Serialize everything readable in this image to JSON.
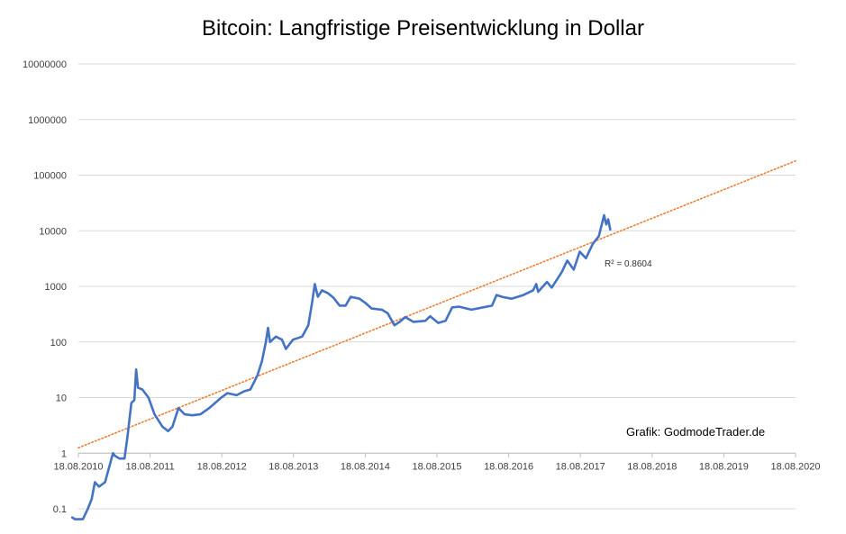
{
  "chart_data": {
    "type": "line",
    "title": "Bitcoin: Langfristige Preisentwicklung in Dollar",
    "xlabel": "",
    "ylabel": "",
    "y_scale": "log",
    "ylim": [
      0.1,
      10000000
    ],
    "y_ticks": [
      "0.1",
      "1",
      "10",
      "100",
      "1000",
      "10000",
      "100000",
      "1000000",
      "10000000"
    ],
    "x_ticks": [
      "18.08.2010",
      "18.08.2011",
      "18.08.2012",
      "18.08.2013",
      "18.08.2014",
      "18.08.2015",
      "18.08.2016",
      "18.08.2017",
      "18.08.2018",
      "18.08.2019",
      "18.08.2020"
    ],
    "xlim": [
      "2010-08-18",
      "2020-08-18"
    ],
    "grid": "horizontal",
    "series": [
      {
        "name": "",
        "color": "#4472c4",
        "points": [
          [
            "2010-07-18",
            0.07
          ],
          [
            "2010-08-01",
            0.065
          ],
          [
            "2010-09-10",
            0.065
          ],
          [
            "2010-10-05",
            0.1
          ],
          [
            "2010-10-25",
            0.15
          ],
          [
            "2010-11-10",
            0.3
          ],
          [
            "2010-12-01",
            0.25
          ],
          [
            "2011-01-01",
            0.3
          ],
          [
            "2011-02-10",
            1.0
          ],
          [
            "2011-02-20",
            0.9
          ],
          [
            "2011-03-15",
            0.8
          ],
          [
            "2011-04-10",
            0.8
          ],
          [
            "2011-04-25",
            2.0
          ],
          [
            "2011-05-15",
            8.0
          ],
          [
            "2011-05-30",
            9.0
          ],
          [
            "2011-06-08",
            32.0
          ],
          [
            "2011-06-18",
            15.0
          ],
          [
            "2011-07-10",
            14.0
          ],
          [
            "2011-08-10",
            10.0
          ],
          [
            "2011-09-10",
            5.0
          ],
          [
            "2011-10-20",
            3.0
          ],
          [
            "2011-11-18",
            2.5
          ],
          [
            "2011-12-10",
            3.0
          ],
          [
            "2012-01-10",
            6.5
          ],
          [
            "2012-02-10",
            5.0
          ],
          [
            "2012-03-20",
            4.8
          ],
          [
            "2012-05-01",
            5.0
          ],
          [
            "2012-06-15",
            6.5
          ],
          [
            "2012-08-15",
            10.0
          ],
          [
            "2012-09-15",
            12.0
          ],
          [
            "2012-11-01",
            11.0
          ],
          [
            "2012-12-10",
            13.0
          ],
          [
            "2013-01-10",
            14.0
          ],
          [
            "2013-02-15",
            25.0
          ],
          [
            "2013-03-10",
            45.0
          ],
          [
            "2013-03-30",
            100.0
          ],
          [
            "2013-04-10",
            180.0
          ],
          [
            "2013-04-20",
            100.0
          ],
          [
            "2013-05-20",
            125.0
          ],
          [
            "2013-06-20",
            110.0
          ],
          [
            "2013-07-10",
            75.0
          ],
          [
            "2013-08-15",
            110.0
          ],
          [
            "2013-10-01",
            125.0
          ],
          [
            "2013-11-01",
            200.0
          ],
          [
            "2013-11-20",
            500.0
          ],
          [
            "2013-12-04",
            1100.0
          ],
          [
            "2013-12-20",
            650.0
          ],
          [
            "2014-01-10",
            850.0
          ],
          [
            "2014-02-10",
            750.0
          ],
          [
            "2014-03-10",
            620.0
          ],
          [
            "2014-04-10",
            450.0
          ],
          [
            "2014-05-10",
            450.0
          ],
          [
            "2014-06-05",
            650.0
          ],
          [
            "2014-07-20",
            600.0
          ],
          [
            "2014-08-20",
            500.0
          ],
          [
            "2014-09-20",
            400.0
          ],
          [
            "2014-11-10",
            380.0
          ],
          [
            "2014-12-10",
            330.0
          ],
          [
            "2015-01-14",
            200.0
          ],
          [
            "2015-02-10",
            230.0
          ],
          [
            "2015-03-10",
            280.0
          ],
          [
            "2015-04-20",
            230.0
          ],
          [
            "2015-06-20",
            240.0
          ],
          [
            "2015-07-15",
            290.0
          ],
          [
            "2015-08-25",
            220.0
          ],
          [
            "2015-10-01",
            240.0
          ],
          [
            "2015-11-04",
            420.0
          ],
          [
            "2015-12-10",
            430.0
          ],
          [
            "2016-02-10",
            380.0
          ],
          [
            "2016-04-10",
            420.0
          ],
          [
            "2016-05-25",
            450.0
          ],
          [
            "2016-06-17",
            700.0
          ],
          [
            "2016-07-15",
            650.0
          ],
          [
            "2016-09-01",
            600.0
          ],
          [
            "2016-11-01",
            700.0
          ],
          [
            "2016-12-20",
            850.0
          ],
          [
            "2017-01-05",
            1100.0
          ],
          [
            "2017-01-15",
            800.0
          ],
          [
            "2017-03-01",
            1200.0
          ],
          [
            "2017-03-25",
            950.0
          ],
          [
            "2017-05-15",
            1800.0
          ],
          [
            "2017-06-12",
            2900.0
          ],
          [
            "2017-07-15",
            2000.0
          ],
          [
            "2017-08-15",
            4200.0
          ],
          [
            "2017-09-15",
            3200.0
          ],
          [
            "2017-10-20",
            5800.0
          ],
          [
            "2017-11-20",
            8000.0
          ],
          [
            "2017-12-17",
            19000.0
          ],
          [
            "2017-12-28",
            13000.0
          ],
          [
            "2018-01-07",
            16000.0
          ],
          [
            "2018-01-17",
            10500.0
          ]
        ]
      }
    ],
    "trendline": {
      "type": "exponential",
      "color": "#ed7d31",
      "style": "dotted",
      "start": [
        "2010-08-18",
        1.25
      ],
      "end": [
        "2020-08-18",
        180000
      ],
      "label": "R² = 0.8604"
    },
    "annotations": [
      {
        "text": "Grafik: GodmodeTrader.de"
      }
    ]
  }
}
